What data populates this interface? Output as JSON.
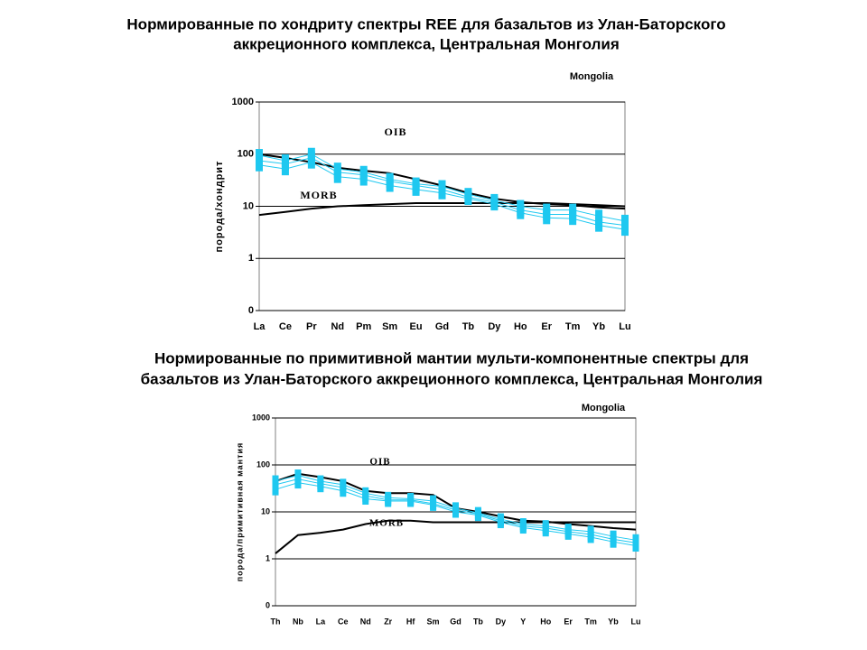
{
  "chart_data": [
    {
      "type": "line",
      "title": [
        "Нормированные по хондриту спектры REE для базальтов из Улан-Баторского",
        "аккреционного комплекса, Центральная Монголия"
      ],
      "y_label": "порода/хондрит",
      "annotations": [
        "OIB",
        "MORB",
        "Mongolia"
      ],
      "categories": [
        "La",
        "Ce",
        "Pr",
        "Nd",
        "Pm",
        "Sm",
        "Eu",
        "Gd",
        "Tb",
        "Dy",
        "Ho",
        "Er",
        "Tm",
        "Yb",
        "Lu"
      ],
      "log": true,
      "grid": true,
      "ylim": [
        0.1,
        1000
      ],
      "yticks": [
        1000,
        100,
        10,
        1,
        {
          "value": 0.1,
          "label": "0"
        }
      ],
      "series": [
        {
          "name": "OIB",
          "color": "#000000",
          "values": [
            100,
            85,
            70,
            55,
            48,
            43,
            33,
            25,
            18,
            14,
            12,
            11,
            10.5,
            9.5,
            9
          ]
        },
        {
          "name": "MORB",
          "color": "#000000",
          "values": [
            6.8,
            7.8,
            9,
            10,
            10.5,
            11,
            11.5,
            11.5,
            11.5,
            11.5,
            11.5,
            11.5,
            11,
            10.5,
            10
          ]
        },
        {
          "color": "#1ec8f0",
          "values": [
            95,
            75,
            100,
            52,
            45,
            33,
            27,
            24,
            17,
            13,
            10,
            8.5,
            8.5,
            6.5,
            5.2
          ]
        },
        {
          "color": "#1ec8f0",
          "values": [
            75,
            65,
            85,
            45,
            40,
            30,
            25,
            21,
            15,
            12,
            8.5,
            7,
            7,
            5,
            4.3
          ]
        },
        {
          "color": "#1ec8f0",
          "values": [
            62,
            52,
            70,
            37,
            33,
            25,
            21,
            18,
            14,
            11,
            7.5,
            6,
            5.8,
            4.3,
            3.6
          ]
        }
      ]
    },
    {
      "type": "line",
      "title": [
        "Нормированные по примитивной мантии мульти-компонентные спектры для",
        "базальтов из Улан-Баторского аккреционного комплекса, Центральная Монголия"
      ],
      "y_label": "порода/примитивная мантия",
      "annotations": [
        "OIB",
        "MORB",
        "Mongolia"
      ],
      "categories": [
        "Th",
        "Nb",
        "La",
        "Ce",
        "Nd",
        "Zr",
        "Hf",
        "Sm",
        "Gd",
        "Tb",
        "Dy",
        "Y",
        "Ho",
        "Er",
        "Tm",
        "Yb",
        "Lu"
      ],
      "log": true,
      "grid": true,
      "ylim": [
        0.1,
        1000
      ],
      "yticks": [
        1000,
        100,
        10,
        1,
        {
          "value": 0.1,
          "label": "0"
        }
      ],
      "series": [
        {
          "name": "OIB",
          "color": "#000000",
          "values": [
            45,
            65,
            55,
            45,
            28,
            25,
            25,
            23,
            12,
            10,
            8,
            6.5,
            6.2,
            5.5,
            5,
            4.5,
            4.2
          ]
        },
        {
          "name": "MORB",
          "color": "#000000",
          "values": [
            1.3,
            3.2,
            3.6,
            4.2,
            5.5,
            6.5,
            6.5,
            6,
            6,
            6,
            6,
            6,
            6,
            6,
            6,
            6,
            6
          ]
        },
        {
          "color": "#1ec8f0",
          "values": [
            45,
            60,
            45,
            38,
            25,
            20,
            19,
            17,
            12,
            9.5,
            7,
            5.5,
            5,
            4.2,
            3.8,
            3,
            2.5
          ]
        },
        {
          "color": "#1ec8f0",
          "values": [
            38,
            50,
            40,
            33,
            22,
            18,
            18,
            15,
            11,
            9,
            6.5,
            5,
            4.5,
            3.8,
            3.3,
            2.6,
            2.2
          ]
        },
        {
          "color": "#1ec8f0",
          "values": [
            30,
            42,
            35,
            28,
            19,
            17,
            17,
            14,
            10,
            8.5,
            6,
            4.6,
            4,
            3.4,
            2.9,
            2.3,
            1.9
          ]
        }
      ]
    }
  ]
}
